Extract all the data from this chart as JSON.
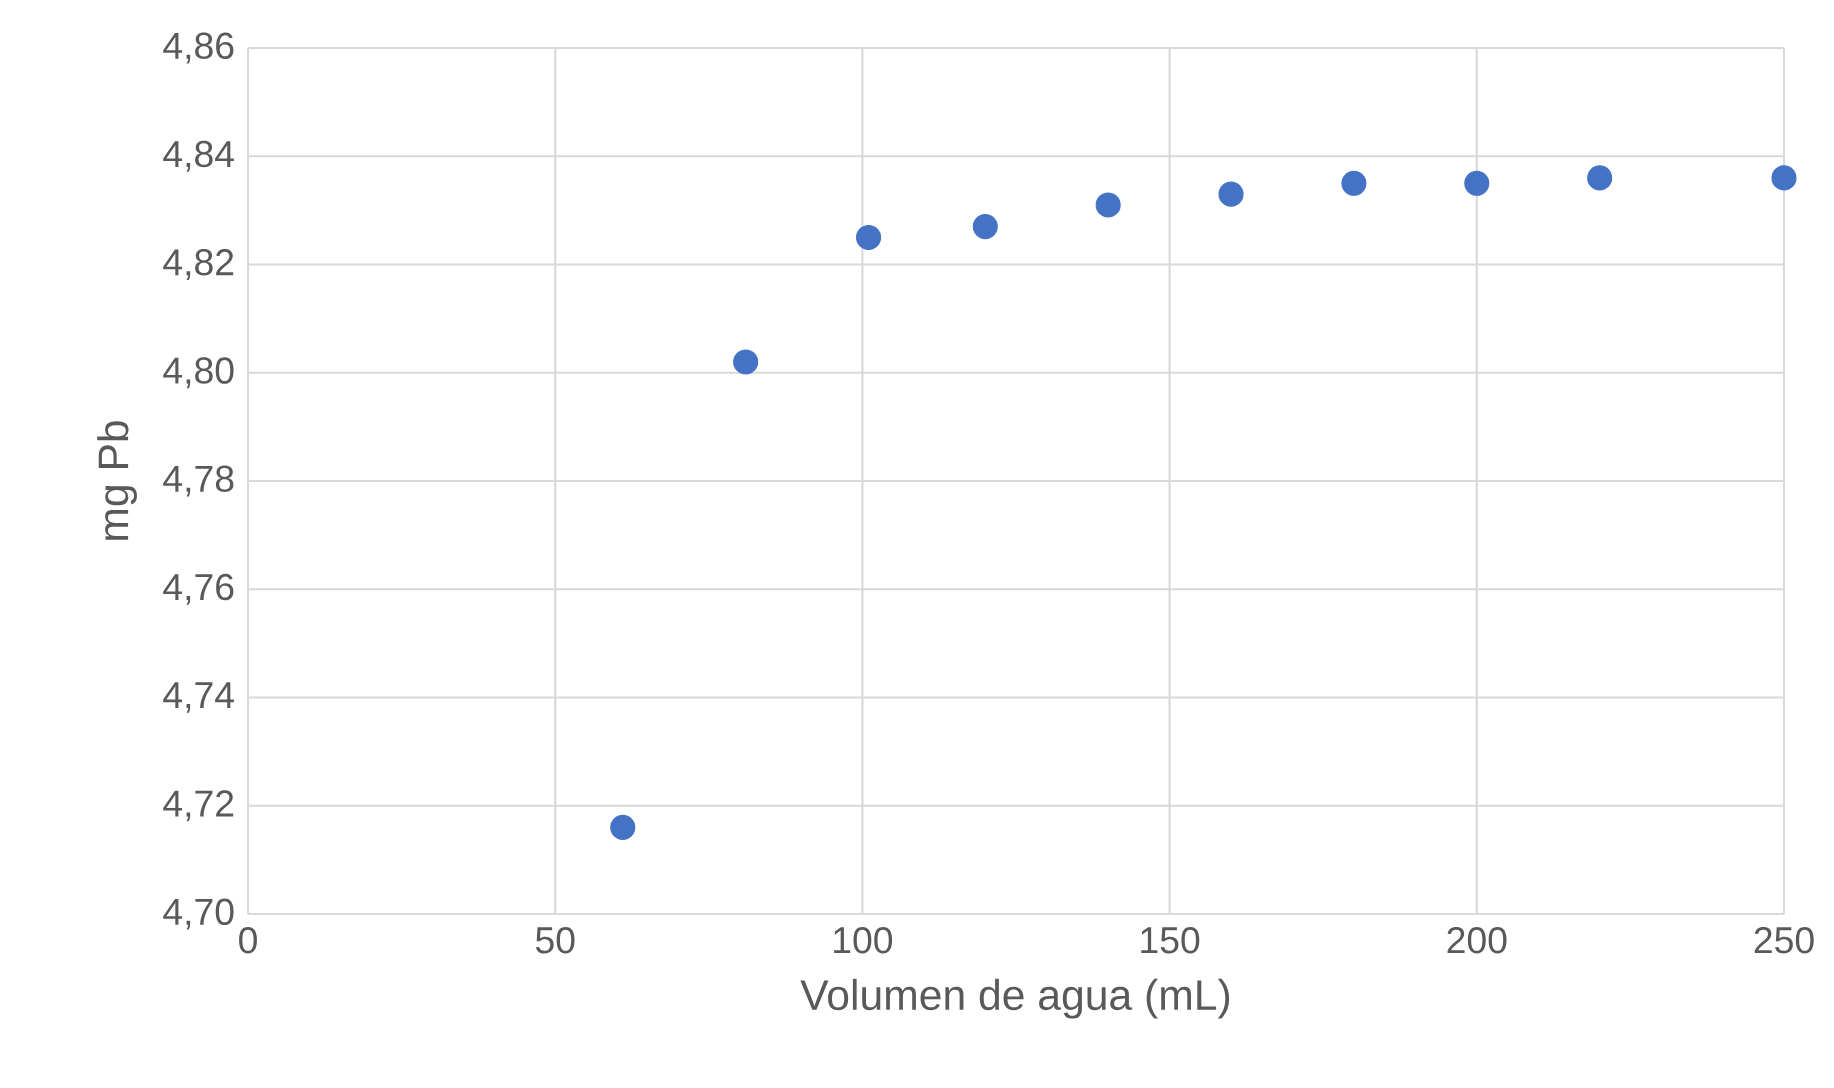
{
  "chart_data": {
    "type": "scatter",
    "xlabel": "Volumen de agua (mL)",
    "ylabel": "mg Pb",
    "x": [
      61,
      81,
      101,
      120,
      140,
      160,
      180,
      200,
      220,
      250
    ],
    "values": [
      4.716,
      4.802,
      4.825,
      4.827,
      4.831,
      4.833,
      4.835,
      4.835,
      4.836,
      4.836
    ],
    "color": "#4472c4",
    "grid": true,
    "xlim": [
      0,
      250
    ],
    "xticks": [
      0,
      50,
      100,
      150,
      200,
      250
    ],
    "ylim": [
      4.7,
      4.86
    ],
    "yticks": [
      {
        "value": 4.7,
        "label": "4,70"
      },
      {
        "value": 4.72,
        "label": "4,72"
      },
      {
        "value": 4.74,
        "label": "4,74"
      },
      {
        "value": 4.76,
        "label": "4,76"
      },
      {
        "value": 4.78,
        "label": "4,78"
      },
      {
        "value": 4.8,
        "label": "4,80"
      },
      {
        "value": 4.82,
        "label": "4,82"
      },
      {
        "value": 4.84,
        "label": "4,84"
      },
      {
        "value": 4.86,
        "label": "4,86"
      }
    ]
  }
}
